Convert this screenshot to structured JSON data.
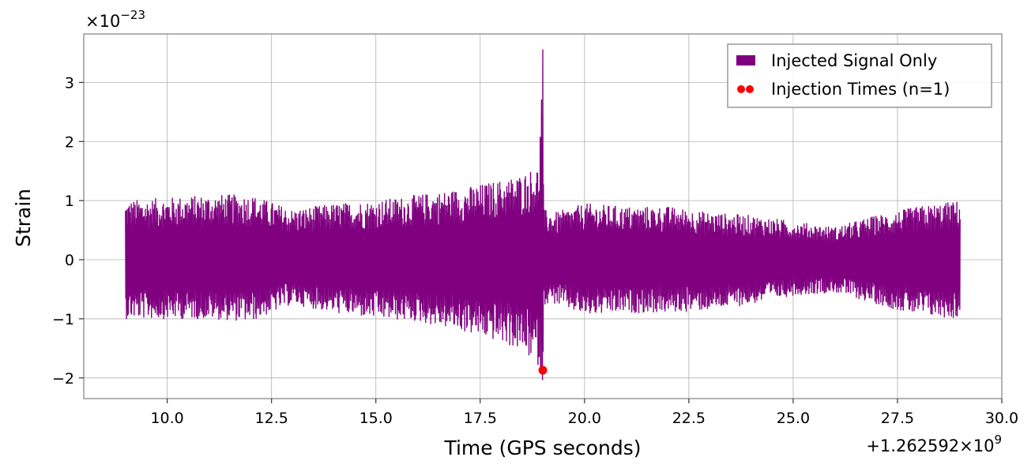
{
  "chart_data": {
    "type": "line",
    "xlabel": "Time (GPS seconds)",
    "ylabel": "Strain",
    "x_offset_text": "+1.262592×10",
    "x_offset_exp": "9",
    "y_multiplier_text": "×10",
    "y_multiplier_exp": "−23",
    "xlim": [
      8.0,
      30.0
    ],
    "ylim": [
      -2.35,
      3.82
    ],
    "x_ticks": [
      10.0,
      12.5,
      15.0,
      17.5,
      20.0,
      22.5,
      25.0,
      27.5,
      30.0
    ],
    "x_tick_labels": [
      "10.0",
      "12.5",
      "15.0",
      "17.5",
      "20.0",
      "22.5",
      "25.0",
      "27.5",
      "30.0"
    ],
    "y_ticks": [
      -2,
      -1,
      0,
      1,
      2,
      3
    ],
    "y_tick_labels": [
      "−2",
      "−1",
      "0",
      "1",
      "2",
      "3"
    ],
    "grid": true,
    "legend_position": "top-right",
    "series": [
      {
        "name": "Injected Signal Only",
        "color": "#800080",
        "kind": "line",
        "envelope_time": [
          9.0,
          10.0,
          11.0,
          12.0,
          13.0,
          14.0,
          15.0,
          16.0,
          17.0,
          18.0,
          18.5,
          18.9,
          19.0,
          19.02,
          19.3,
          20.0,
          21.0,
          22.0,
          23.0,
          24.0,
          25.0,
          26.0,
          27.0,
          28.0,
          29.0
        ],
        "envelope_upper": [
          1.0,
          1.05,
          1.1,
          1.1,
          0.85,
          0.95,
          1.0,
          1.1,
          1.2,
          1.35,
          1.45,
          1.6,
          3.55,
          0.85,
          0.8,
          0.95,
          0.9,
          0.9,
          0.8,
          0.75,
          0.65,
          0.55,
          0.75,
          0.9,
          1.0
        ],
        "envelope_lower": [
          -1.0,
          -1.0,
          -1.0,
          -1.05,
          -0.75,
          -0.9,
          -1.0,
          -1.05,
          -1.2,
          -1.4,
          -1.55,
          -1.8,
          -2.05,
          -0.75,
          -0.75,
          -0.95,
          -0.9,
          -0.9,
          -0.85,
          -0.75,
          -0.6,
          -0.55,
          -0.75,
          -0.95,
          -1.0
        ]
      },
      {
        "name": "Injection Times (n=1)",
        "color": "#ff0000",
        "kind": "scatter",
        "x": [
          19.0
        ],
        "y": [
          -1.87
        ]
      }
    ]
  }
}
